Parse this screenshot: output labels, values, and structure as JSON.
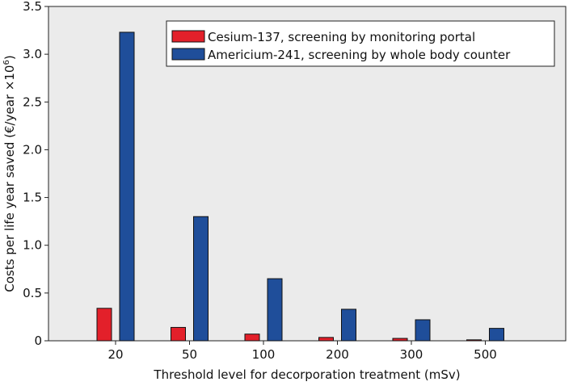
{
  "chart_data": {
    "type": "bar",
    "categories": [
      "20",
      "50",
      "100",
      "200",
      "300",
      "500"
    ],
    "series": [
      {
        "name": "Cesium-137, screening by monitoring portal",
        "values": [
          0.34,
          0.14,
          0.07,
          0.035,
          0.025,
          0.01
        ],
        "color": "#e3202a"
      },
      {
        "name": "Americium-241, screening by whole body counter",
        "values": [
          3.23,
          1.3,
          0.65,
          0.33,
          0.22,
          0.13
        ],
        "color": "#1f4e9a"
      }
    ],
    "xlabel": "Threshold level for decorporation treatment (mSv)",
    "ylabel_main": "Costs per life year saved (€/year ×10",
    "ylabel_exp": "6",
    "ylabel_close": ")",
    "ylim": [
      0,
      3.5
    ],
    "yticks": [
      0,
      0.5,
      1.0,
      1.5,
      2.0,
      2.5,
      3.0,
      3.5
    ],
    "ytick_labels": [
      "0",
      "0.5",
      "1.0",
      "1.5",
      "2.0",
      "2.5",
      "3.0",
      "3.5"
    ],
    "legend_position": "top-right",
    "grid": false,
    "plot_background": "#ebebeb",
    "bar_edge": "#111111"
  }
}
